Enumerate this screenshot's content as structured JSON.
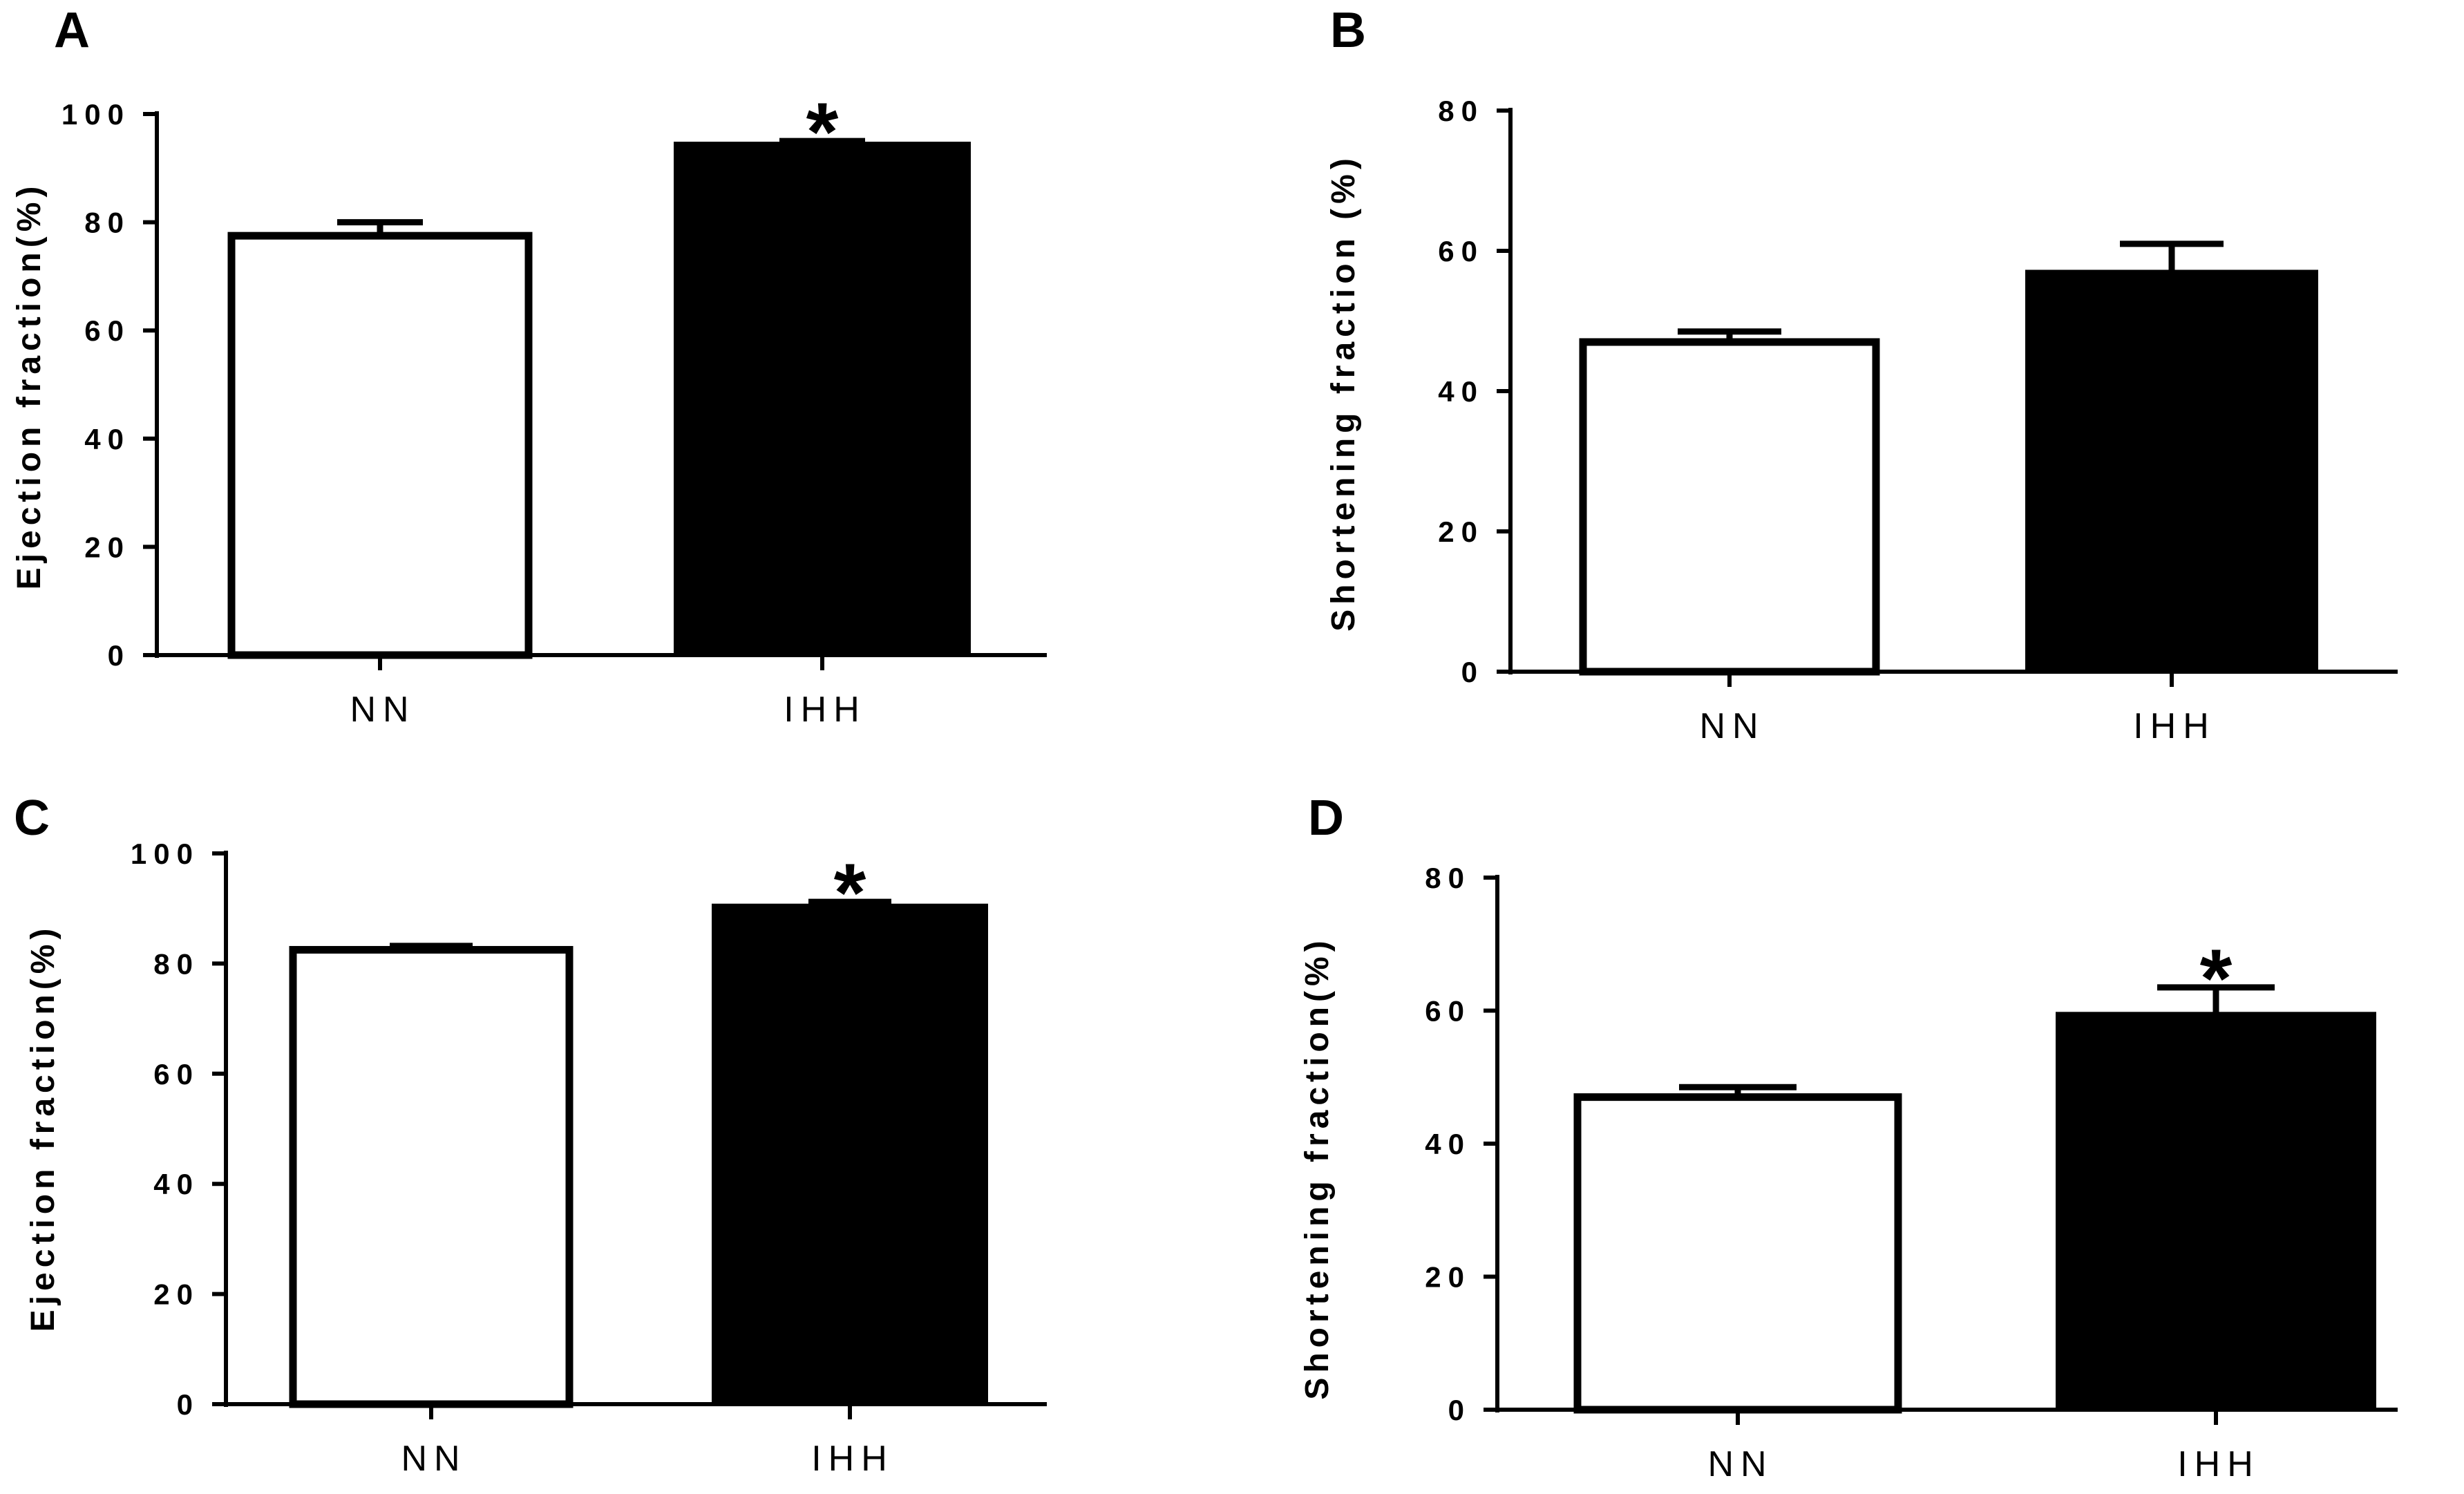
{
  "figure": {
    "colors": {
      "ink": "#000000",
      "open_fill": "#ffffff"
    }
  },
  "chart_data": [
    {
      "panel": "A",
      "type": "bar",
      "categories": [
        "NN",
        "IHH"
      ],
      "values": [
        77.5,
        94.5
      ],
      "errors": [
        2.5,
        0.5
      ],
      "fills": [
        "white",
        "black"
      ],
      "significance": [
        "",
        "*"
      ],
      "ylabel": "Ejection fraction(%)",
      "ylim": [
        0,
        100
      ],
      "yticks": [
        0,
        20,
        40,
        60,
        80,
        100
      ]
    },
    {
      "panel": "B",
      "type": "bar",
      "categories": [
        "NN",
        "IHH"
      ],
      "values": [
        47,
        57
      ],
      "errors": [
        1.5,
        4
      ],
      "fills": [
        "white",
        "black"
      ],
      "significance": [
        "",
        ""
      ],
      "ylabel": "Shortening fraction (%)",
      "ylim": [
        0,
        80
      ],
      "yticks": [
        0,
        20,
        40,
        60,
        80
      ]
    },
    {
      "panel": "C",
      "type": "bar",
      "categories": [
        "NN",
        "IHH"
      ],
      "values": [
        82.5,
        90.5
      ],
      "errors": [
        0.7,
        0.7
      ],
      "fills": [
        "white",
        "black"
      ],
      "significance": [
        "",
        "*"
      ],
      "ylabel": "Ejection fraction(%)",
      "ylim": [
        0,
        100
      ],
      "yticks": [
        0,
        20,
        40,
        60,
        80,
        100
      ]
    },
    {
      "panel": "D",
      "type": "bar",
      "categories": [
        "NN",
        "IHH"
      ],
      "values": [
        47,
        59.5
      ],
      "errors": [
        1.5,
        4
      ],
      "fills": [
        "white",
        "black"
      ],
      "significance": [
        "",
        "*"
      ],
      "ylabel": "Shortening fraction(%)",
      "ylim": [
        0,
        80
      ],
      "yticks": [
        0,
        20,
        40,
        60,
        80
      ]
    }
  ]
}
